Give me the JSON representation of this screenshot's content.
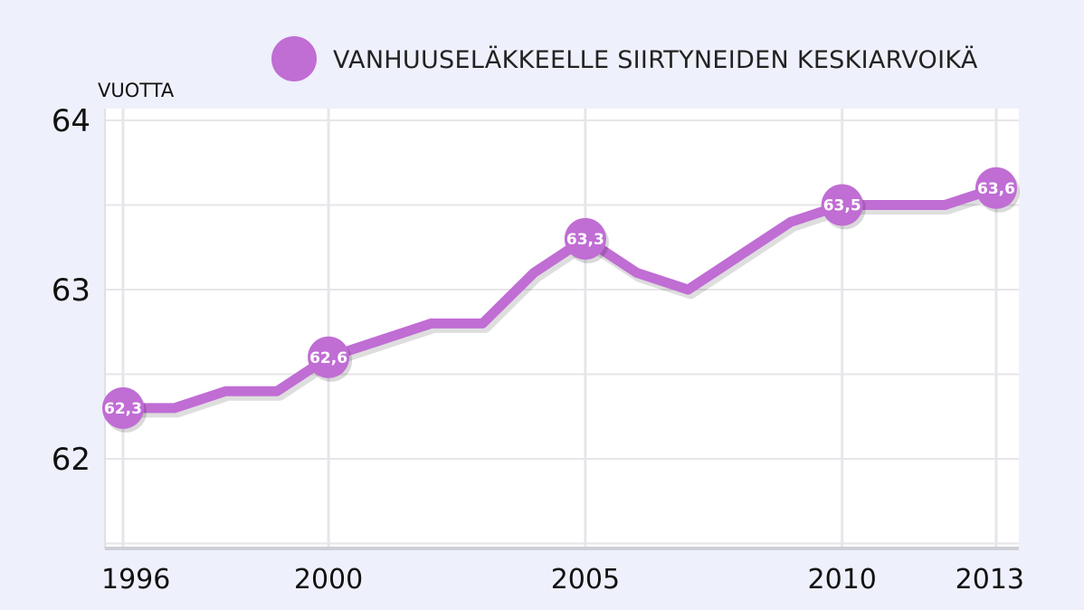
{
  "chart_data": {
    "type": "line",
    "title": "",
    "ylabel": "VUOTTA",
    "xlabel": "",
    "ylim": [
      61.5,
      64
    ],
    "xlim": [
      1996,
      2013
    ],
    "y_ticks": [
      "62",
      "63",
      "64"
    ],
    "x_ticks": [
      "1996",
      "2000",
      "2005",
      "2010",
      "2013"
    ],
    "grid": true,
    "legend_position": "top-right",
    "series": [
      {
        "name": "VANHUUSELÄKKEELLE SIIRTYNEIDEN KESKIARVOIKÄ",
        "color": "#c06dd4",
        "x": [
          1996,
          1997,
          1998,
          1999,
          2000,
          2001,
          2002,
          2003,
          2004,
          2005,
          2006,
          2007,
          2008,
          2009,
          2010,
          2011,
          2012,
          2013
        ],
        "values": [
          62.3,
          62.3,
          62.4,
          62.4,
          62.6,
          62.7,
          62.8,
          62.8,
          63.1,
          63.3,
          63.1,
          63.0,
          63.2,
          63.4,
          63.5,
          63.5,
          63.5,
          63.6
        ]
      }
    ],
    "data_labels": [
      {
        "x": 1996,
        "text": "62,3"
      },
      {
        "x": 2000,
        "text": "62,6"
      },
      {
        "x": 2005,
        "text": "63,3"
      },
      {
        "x": 2010,
        "text": "63,5"
      },
      {
        "x": 2013,
        "text": "63,6"
      }
    ]
  }
}
